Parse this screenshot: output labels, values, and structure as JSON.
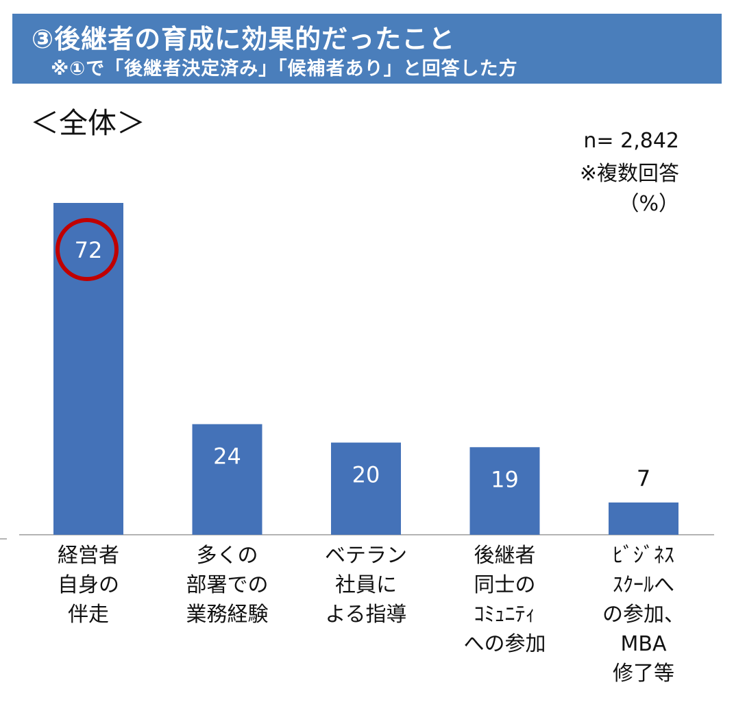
{
  "header": {
    "title": "③後継者の育成に効果的だったこと",
    "subtitle": "※①で「後継者決定済み」「候補者あり」と回答した方"
  },
  "section_label": "＜全体＞",
  "meta": {
    "n": "n= 2,842",
    "note": "※複数回答",
    "unit": "（%）"
  },
  "colors": {
    "bar": "#4472b8",
    "banner": "#4a7ebb",
    "highlight": "#c00000"
  },
  "chart_data": {
    "type": "bar",
    "title": "",
    "xlabel": "",
    "ylabel": "",
    "ylim": [
      0,
      72
    ],
    "grid": false,
    "legend": "none",
    "categories": [
      [
        "経営者",
        "自身の",
        "伴走"
      ],
      [
        "多くの",
        "部署での",
        "業務経験"
      ],
      [
        "ベテラン",
        "社員に",
        "よる指導"
      ],
      [
        "後継者",
        "同士の",
        "ｺﾐｭﾆﾃｨ",
        "への参加"
      ],
      [
        "ﾋﾞｼﾞﾈｽ",
        "ｽｸｰﾙへ",
        "の参加、",
        "MBA",
        "修了等"
      ]
    ],
    "values": [
      72,
      24,
      20,
      19,
      7
    ],
    "highlighted_index": 0
  }
}
